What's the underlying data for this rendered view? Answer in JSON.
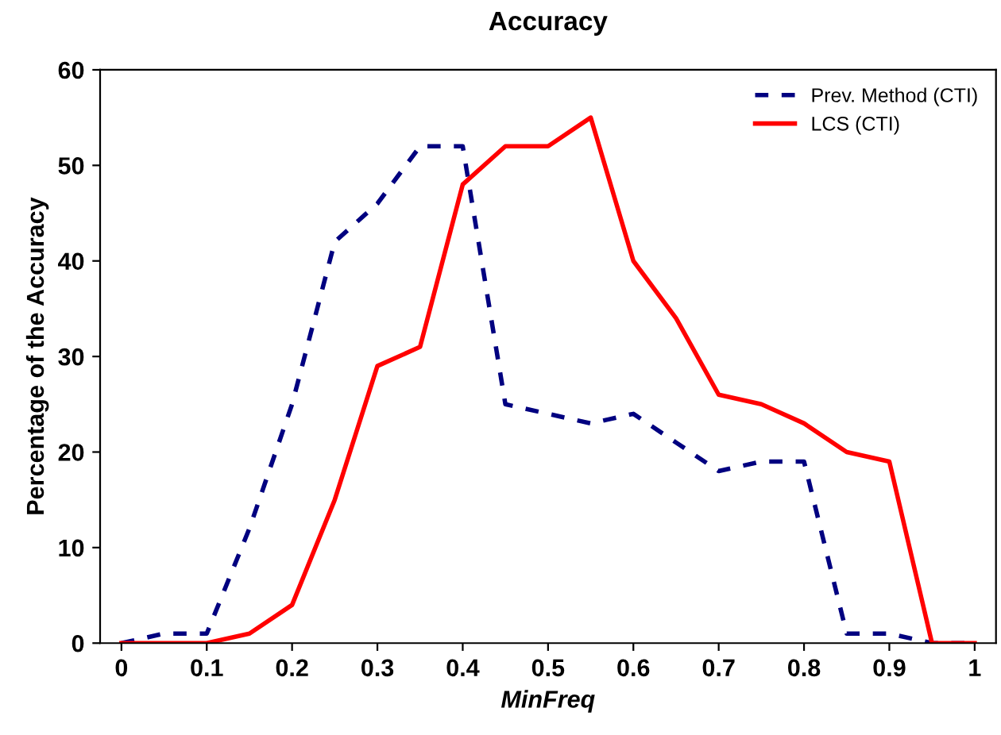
{
  "chart_data": {
    "type": "line",
    "title": "Accuracy",
    "xlabel": "MinFreq",
    "ylabel": "Percentage of the Accuracy",
    "x": [
      0,
      0.05,
      0.1,
      0.15,
      0.2,
      0.25,
      0.3,
      0.35,
      0.4,
      0.45,
      0.5,
      0.55,
      0.6,
      0.65,
      0.7,
      0.75,
      0.8,
      0.85,
      0.9,
      0.95,
      1
    ],
    "series": [
      {
        "name": "Prev. Method (CTI)",
        "color": "#000080",
        "line_style": "dashed",
        "values": [
          0,
          1,
          1,
          12,
          25,
          42,
          46,
          52,
          52,
          25,
          24,
          23,
          24,
          21,
          18,
          19,
          19,
          1,
          1,
          0,
          0
        ]
      },
      {
        "name": "LCS (CTI)",
        "color": "#ff0000",
        "line_style": "solid",
        "values": [
          0,
          0,
          0,
          1,
          4,
          15,
          29,
          31,
          48,
          52,
          52,
          55,
          40,
          34,
          26,
          25,
          23,
          20,
          19,
          0,
          0
        ]
      }
    ],
    "xlim": [
      -0.025,
      1.025
    ],
    "xticks": [
      0,
      0.1,
      0.2,
      0.3,
      0.4,
      0.5,
      0.6,
      0.7,
      0.8,
      0.9,
      1
    ],
    "ylim": [
      0,
      60
    ],
    "yticks": [
      0,
      10,
      20,
      30,
      40,
      50,
      60
    ],
    "grid": false,
    "legend": "top right",
    "marker": "none"
  }
}
